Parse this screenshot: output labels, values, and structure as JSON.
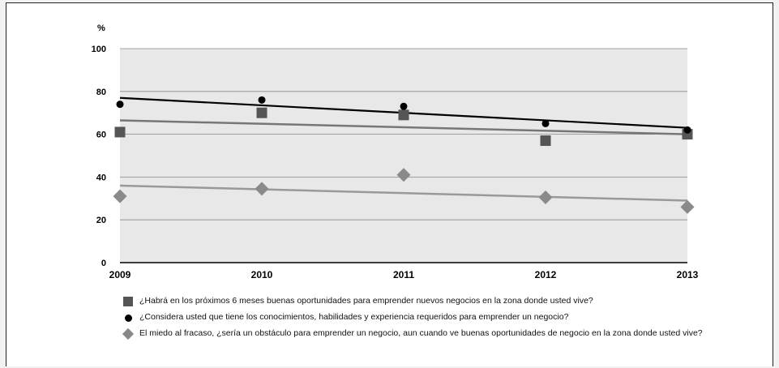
{
  "chart_data": {
    "type": "scatter",
    "ylabel": "%",
    "ylim": [
      0,
      100
    ],
    "yticks": [
      "0",
      "20",
      "40",
      "60",
      "80",
      "100"
    ],
    "x": [
      "2009",
      "2010",
      "2011",
      "2012",
      "2013"
    ],
    "grid": true,
    "series": [
      {
        "name": "¿Habrá en los próximos 6 meses buenas oportunidades para emprender nuevos negocios en la zona donde usted vive?",
        "marker": "square",
        "color": "#555555",
        "values": [
          61,
          70,
          69,
          57,
          60
        ],
        "trend": [
          66.5,
          60
        ]
      },
      {
        "name": "¿Considera usted que tiene los conocimientos, habilidades y experiencia requeridos para emprender un negocio?",
        "marker": "circle",
        "color": "#000000",
        "values": [
          74,
          76,
          73,
          65,
          62
        ],
        "trend": [
          77,
          63
        ]
      },
      {
        "name": "El miedo al fracaso, ¿sería un obstáculo para emprender un negocio, aun cuando ve buenas oportunidades de negocio en la zona donde usted vive?",
        "marker": "diamond",
        "color": "#8a8a8a",
        "values": [
          31,
          34.5,
          41,
          30.5,
          26
        ],
        "trend": [
          36,
          29
        ]
      }
    ]
  }
}
